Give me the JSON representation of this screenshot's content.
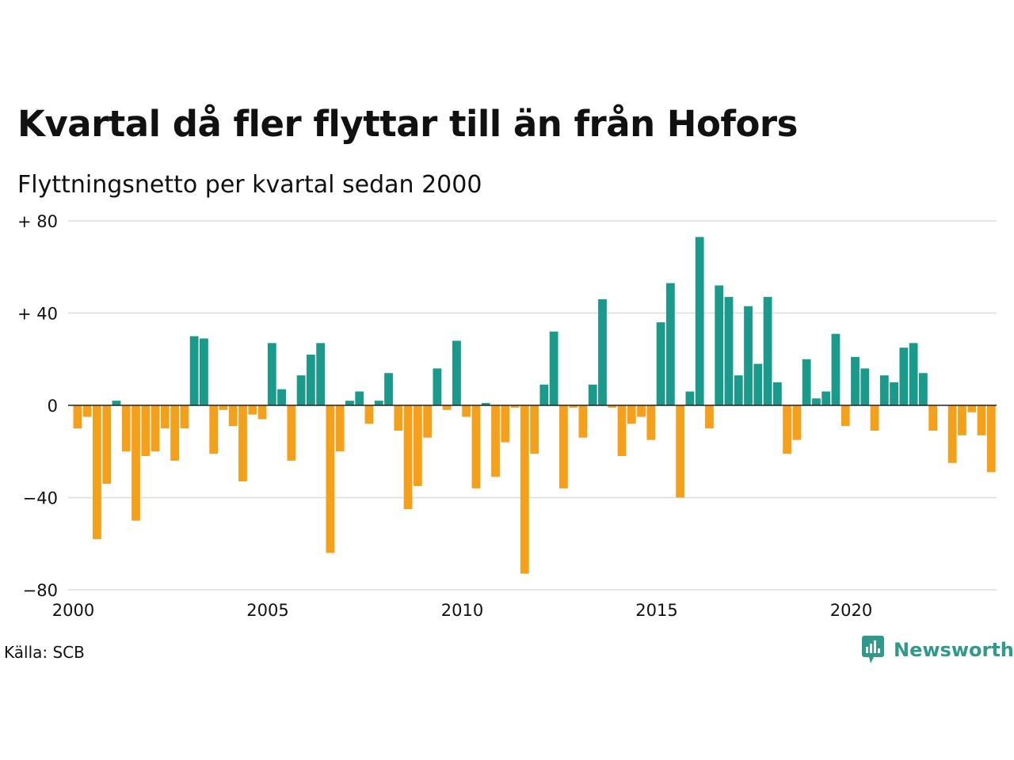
{
  "title": "Kvartal då fler flyttar till än från Hofors",
  "subtitle": "Flyttningsnetto per kvartal sedan 2000",
  "source": "Källa: SCB",
  "brand": "Newsworthy",
  "colors": {
    "positive": "#1a9a8b",
    "negative": "#f5a01a",
    "grid": "#dddddd",
    "brand": "#2f9a8b"
  },
  "chart_data": {
    "type": "bar",
    "ylim": [
      -80,
      80
    ],
    "y_ticks": [
      {
        "value": 80,
        "label": "+ 80"
      },
      {
        "value": 40,
        "label": "+ 40"
      },
      {
        "value": 0,
        "label": "0"
      },
      {
        "value": -40,
        "label": "−40"
      },
      {
        "value": -80,
        "label": "−80"
      }
    ],
    "x_ticks": [
      {
        "value": 2000,
        "label": "2000"
      },
      {
        "value": 2005,
        "label": "2005"
      },
      {
        "value": 2010,
        "label": "2010"
      },
      {
        "value": 2015,
        "label": "2015"
      },
      {
        "value": 2020,
        "label": "2020"
      }
    ],
    "x_start": "2000 K1",
    "x_end": "2023 K3",
    "values": [
      -10,
      -5,
      -58,
      -34,
      2,
      -20,
      -50,
      -22,
      -20,
      -10,
      -24,
      -10,
      30,
      29,
      -21,
      -2,
      -9,
      -33,
      -4,
      -6,
      27,
      7,
      -24,
      13,
      22,
      27,
      -64,
      -20,
      2,
      6,
      -8,
      2,
      14,
      -11,
      -45,
      -35,
      -14,
      16,
      -2,
      28,
      -5,
      -36,
      1,
      -31,
      -16,
      -1,
      -73,
      -21,
      9,
      32,
      -36,
      -1,
      -14,
      9,
      46,
      -1,
      -22,
      -8,
      -5,
      -15,
      36,
      53,
      -40,
      6,
      73,
      -10,
      52,
      47,
      13,
      43,
      18,
      47,
      10,
      -21,
      -15,
      20,
      3,
      6,
      31,
      -9,
      21,
      16,
      -11,
      13,
      10,
      25,
      27,
      14,
      -11,
      0,
      -25,
      -13,
      -3,
      -13,
      -29
    ]
  }
}
